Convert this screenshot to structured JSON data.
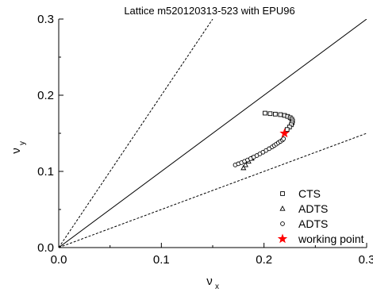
{
  "chart_data": {
    "type": "scatter",
    "title": "Lattice m520120313-523 with EPU96",
    "xlabel": "ν",
    "xlabel_sub": "x",
    "ylabel": "ν",
    "ylabel_sub": "y",
    "xlim": [
      0.0,
      0.3
    ],
    "ylim": [
      0.0,
      0.3
    ],
    "x_ticks": [
      0.0,
      0.1,
      0.2,
      0.3
    ],
    "x_tick_labels": [
      "0.0",
      "0.1",
      "0.2",
      "0.3"
    ],
    "y_ticks": [
      0.0,
      0.1,
      0.2,
      0.3
    ],
    "y_tick_labels": [
      "0.0",
      "0.1",
      "0.2",
      "0.3"
    ],
    "grid": false,
    "legend_position": "bottom-right",
    "reference_lines": [
      {
        "style": "dashed",
        "x": [
          0.0,
          0.15
        ],
        "y": [
          0.0,
          0.3
        ]
      },
      {
        "style": "solid",
        "x": [
          0.0,
          0.3
        ],
        "y": [
          0.0,
          0.3
        ]
      },
      {
        "style": "dashed",
        "x": [
          0.0,
          0.3
        ],
        "y": [
          0.0,
          0.15
        ]
      }
    ],
    "series": [
      {
        "name": "CTS",
        "marker": "square",
        "x": [
          0.201,
          0.206,
          0.211,
          0.216,
          0.22,
          0.223,
          0.2255,
          0.227,
          0.2278,
          0.2275,
          0.2265,
          0.2248,
          0.2225
        ],
        "y": [
          0.1765,
          0.1758,
          0.1752,
          0.1745,
          0.1735,
          0.1722,
          0.1705,
          0.1685,
          0.1662,
          0.1638,
          0.1612,
          0.1582,
          0.155
        ]
      },
      {
        "name": "ADTS",
        "marker": "triangle",
        "x": [
          0.18,
          0.182,
          0.185,
          0.188
        ],
        "y": [
          0.1045,
          0.1085,
          0.113,
          0.117
        ]
      },
      {
        "name": "ADTS",
        "marker": "circle",
        "x": [
          0.172,
          0.175,
          0.178,
          0.181,
          0.184,
          0.187,
          0.19,
          0.193,
          0.196,
          0.199,
          0.202,
          0.205,
          0.208,
          0.21,
          0.212,
          0.214,
          0.216,
          0.218,
          0.219
        ],
        "y": [
          0.1085,
          0.11,
          0.1115,
          0.1132,
          0.115,
          0.1168,
          0.1188,
          0.1208,
          0.123,
          0.1252,
          0.1275,
          0.1298,
          0.1322,
          0.134,
          0.1358,
          0.1376,
          0.1394,
          0.1412,
          0.1428
        ]
      },
      {
        "name": "working point",
        "marker": "star",
        "color": "#ff0000",
        "x": [
          0.22
        ],
        "y": [
          0.15
        ]
      }
    ],
    "legend": [
      {
        "label": "CTS",
        "marker": "square"
      },
      {
        "label": "ADTS",
        "marker": "triangle"
      },
      {
        "label": "ADTS",
        "marker": "circle"
      },
      {
        "label": "working point",
        "marker": "star"
      }
    ]
  },
  "colors": {
    "axis": "#000000",
    "marker_stroke": "#000000",
    "star": "#ff0000"
  }
}
